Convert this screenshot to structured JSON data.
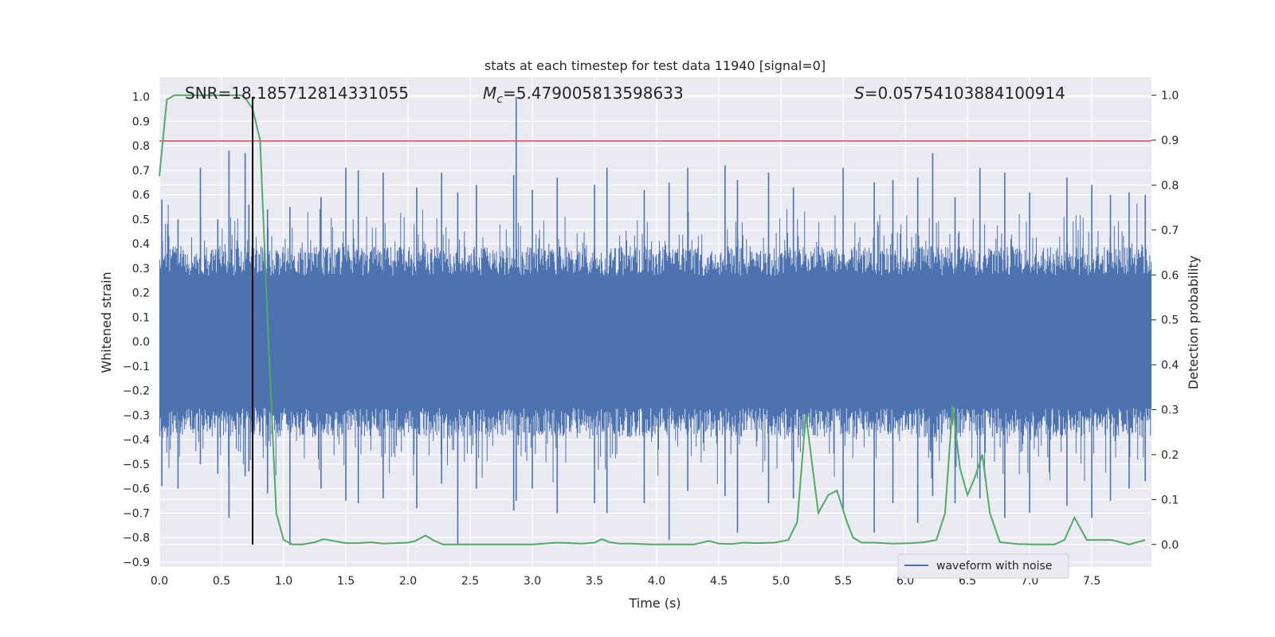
{
  "chart_data": {
    "type": "line",
    "title": "stats at each timestep for test data 11940 [signal=0]",
    "xlabel": "Time (s)",
    "ylabel": "Whitened strain",
    "y2label": "Detection probability",
    "xlim": [
      0.0,
      7.98
    ],
    "ylim": [
      -0.92,
      1.08
    ],
    "y2lim": [
      -0.05,
      1.04
    ],
    "xticks": [
      "0.0",
      "0.5",
      "1.0",
      "1.5",
      "2.0",
      "2.5",
      "3.0",
      "3.5",
      "4.0",
      "4.5",
      "5.0",
      "5.5",
      "6.0",
      "6.5",
      "7.0",
      "7.5"
    ],
    "yticks": [
      "1.0",
      "0.9",
      "0.8",
      "0.7",
      "0.6",
      "0.5",
      "0.4",
      "0.3",
      "0.2",
      "0.1",
      "0.0",
      "−0.1",
      "−0.2",
      "−0.3",
      "−0.4",
      "−0.5",
      "−0.6",
      "−0.7",
      "−0.8",
      "−0.9"
    ],
    "y2ticks": [
      "1.0",
      "0.9",
      "0.8",
      "0.7",
      "0.6",
      "0.5",
      "0.4",
      "0.3",
      "0.2",
      "0.1",
      "0.0"
    ],
    "annotations": {
      "snr": "SNR=18.185712814331055",
      "mc": "=5.479005813598633",
      "s": "=0.05754103884100914"
    },
    "grid": true,
    "legend_position": "lower-right",
    "series": [
      {
        "name": "waveform with noise",
        "color": "#4c72b0",
        "axis": "left",
        "envelope_peaks": {
          "x": [
            0.02,
            0.15,
            0.33,
            0.47,
            0.56,
            0.69,
            0.72,
            0.87,
            1.05,
            1.3,
            1.5,
            1.6,
            1.8,
            2.07,
            2.27,
            2.4,
            2.55,
            2.85,
            2.87,
            3.0,
            3.2,
            3.5,
            3.6,
            3.9,
            4.1,
            4.25,
            4.55,
            4.65,
            4.9,
            5.1,
            5.5,
            5.75,
            5.9,
            6.1,
            6.22,
            6.4,
            6.6,
            6.8,
            7.0,
            7.3,
            7.5,
            7.65,
            7.8,
            7.93
          ],
          "max": [
            0.58,
            0.5,
            0.71,
            0.5,
            0.78,
            0.77,
            0.56,
            0.54,
            0.55,
            0.59,
            0.71,
            0.7,
            0.69,
            0.63,
            0.69,
            0.61,
            0.64,
            0.68,
            1.0,
            0.62,
            0.67,
            0.64,
            0.71,
            0.62,
            0.65,
            0.71,
            0.72,
            0.66,
            0.69,
            0.63,
            0.71,
            0.65,
            0.66,
            0.67,
            0.77,
            0.59,
            0.71,
            0.69,
            0.61,
            0.67,
            0.64,
            0.6,
            0.61,
            0.6
          ],
          "min": [
            -0.59,
            -0.6,
            -0.5,
            -0.54,
            -0.72,
            -0.55,
            -0.53,
            -0.62,
            -0.83,
            -0.6,
            -0.65,
            -0.66,
            -0.64,
            -0.68,
            -0.58,
            -0.83,
            -0.6,
            -0.69,
            -0.65,
            -0.6,
            -0.7,
            -0.66,
            -0.7,
            -0.66,
            -0.81,
            -0.61,
            -0.63,
            -0.78,
            -0.66,
            -0.64,
            -0.69,
            -0.78,
            -0.66,
            -0.74,
            -0.63,
            -0.66,
            -0.64,
            -0.72,
            -0.7,
            -0.67,
            -0.72,
            -0.65,
            -0.6,
            -0.57
          ],
          "core": 0.27
        }
      },
      {
        "name": "",
        "color": "#55a868",
        "axis": "right",
        "x": [
          0.0,
          0.06,
          0.12,
          0.2,
          0.3,
          0.4,
          0.5,
          0.6,
          0.66,
          0.7,
          0.75,
          0.81,
          0.87,
          0.94,
          1.0,
          1.07,
          1.15,
          1.25,
          1.32,
          1.4,
          1.5,
          1.6,
          1.7,
          1.8,
          1.9,
          2.0,
          2.06,
          2.14,
          2.2,
          2.28,
          2.4,
          2.6,
          2.8,
          3.0,
          3.2,
          3.4,
          3.5,
          3.56,
          3.62,
          3.7,
          3.8,
          3.95,
          4.1,
          4.3,
          4.42,
          4.5,
          4.6,
          4.7,
          4.8,
          4.95,
          5.06,
          5.13,
          5.2,
          5.3,
          5.38,
          5.45,
          5.53,
          5.58,
          5.65,
          5.75,
          5.9,
          6.05,
          6.15,
          6.25,
          6.32,
          6.38,
          6.44,
          6.5,
          6.56,
          6.62,
          6.68,
          6.76,
          6.9,
          7.05,
          7.2,
          7.28,
          7.36,
          7.46,
          7.55,
          7.66,
          7.8,
          7.93
        ],
        "y": [
          0.82,
          0.99,
          1.0,
          1.0,
          1.0,
          1.0,
          1.0,
          1.0,
          1.0,
          0.99,
          0.97,
          0.9,
          0.5,
          0.07,
          0.01,
          0.0,
          0.0,
          0.005,
          0.012,
          0.008,
          0.003,
          0.003,
          0.005,
          0.002,
          0.003,
          0.004,
          0.008,
          0.02,
          0.01,
          0.0,
          0.0,
          0.0,
          0.0,
          0.0,
          0.004,
          0.002,
          0.004,
          0.012,
          0.005,
          0.002,
          0.002,
          0.0,
          0.0,
          0.0,
          0.008,
          0.002,
          0.001,
          0.004,
          0.003,
          0.004,
          0.01,
          0.05,
          0.29,
          0.07,
          0.11,
          0.12,
          0.05,
          0.015,
          0.004,
          0.004,
          0.002,
          0.003,
          0.005,
          0.01,
          0.07,
          0.31,
          0.17,
          0.11,
          0.15,
          0.2,
          0.07,
          0.005,
          0.001,
          0.0,
          0.0,
          0.01,
          0.06,
          0.01,
          0.01,
          0.01,
          0.0,
          0.01
        ]
      }
    ],
    "threshold_line": {
      "axis": "left",
      "value": 0.82,
      "color": "#c44e52"
    },
    "marker_line": {
      "x": 0.75,
      "color": "#000000"
    }
  }
}
